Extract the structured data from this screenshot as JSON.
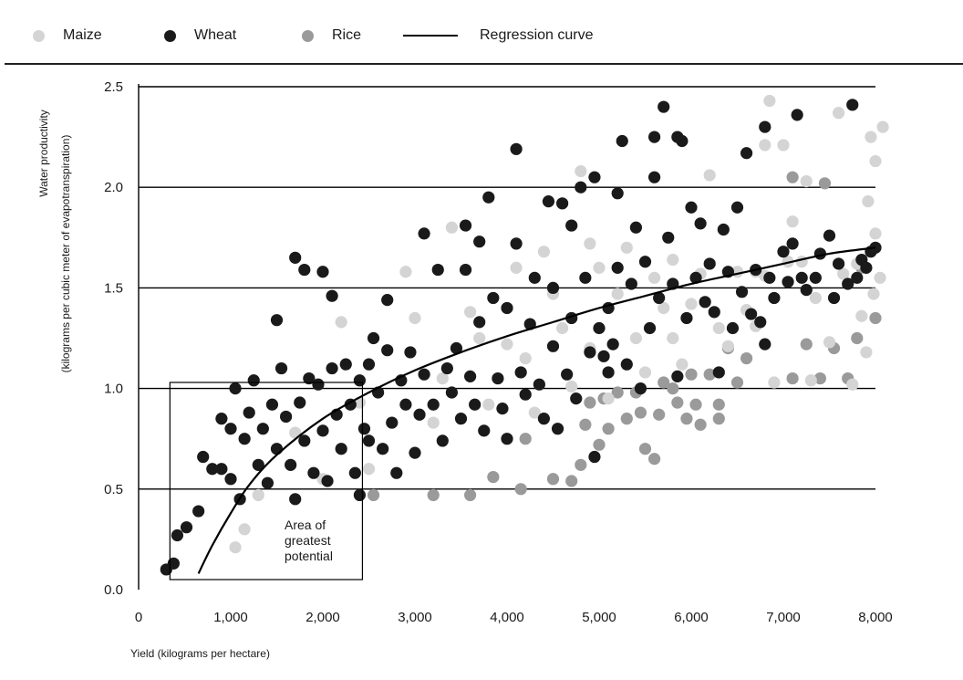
{
  "legend": {
    "maize_label": "Maize",
    "wheat_label": "Wheat",
    "rice_label": "Rice",
    "curve_label": "Regression curve"
  },
  "colors": {
    "maize": "#d4d4d4",
    "wheat": "#1a1a1a",
    "rice": "#9a9a9a",
    "curve": "#000000",
    "grid": "#000000"
  },
  "chart_data": {
    "type": "scatter",
    "title": "",
    "xlabel": "Yield (kilograms per hectare)",
    "ylabel_line1": "Water productivity",
    "ylabel_line2": "(kilograms per cubic meter of evapotranspiration)",
    "xlim": [
      0,
      8000
    ],
    "ylim": [
      0,
      2.5
    ],
    "x_ticks": [
      "0",
      "1,000",
      "2,000",
      "3,000",
      "4,000",
      "5,000",
      "6,000",
      "7,000",
      "8,000"
    ],
    "y_ticks": [
      "0.0",
      "0.5",
      "1.0",
      "1.5",
      "2.0",
      "2.5"
    ],
    "grid": "horizontal",
    "legend_position": "top",
    "annotation": {
      "lines": [
        "Area of",
        "greatest",
        "potential"
      ],
      "box_x": [
        340,
        2430
      ],
      "box_y": [
        0.05,
        1.03
      ]
    },
    "regression_curve": {
      "name": "Regression curve",
      "points": [
        [
          650,
          0.08
        ],
        [
          800,
          0.22
        ],
        [
          1000,
          0.38
        ],
        [
          1200,
          0.52
        ],
        [
          1500,
          0.67
        ],
        [
          2000,
          0.85
        ],
        [
          2500,
          0.98
        ],
        [
          3000,
          1.09
        ],
        [
          3500,
          1.18
        ],
        [
          4000,
          1.26
        ],
        [
          4500,
          1.33
        ],
        [
          5000,
          1.4
        ],
        [
          5500,
          1.46
        ],
        [
          6000,
          1.52
        ],
        [
          6500,
          1.57
        ],
        [
          7000,
          1.62
        ],
        [
          7500,
          1.67
        ],
        [
          8000,
          1.7
        ]
      ]
    },
    "series": [
      {
        "name": "Maize",
        "points": [
          [
            1050,
            0.21
          ],
          [
            1150,
            0.3
          ],
          [
            1300,
            0.47
          ],
          [
            1700,
            0.78
          ],
          [
            2000,
            0.55
          ],
          [
            2200,
            1.33
          ],
          [
            2400,
            0.93
          ],
          [
            2500,
            0.6
          ],
          [
            2900,
            1.58
          ],
          [
            3000,
            1.35
          ],
          [
            3200,
            0.83
          ],
          [
            3300,
            1.05
          ],
          [
            3400,
            1.8
          ],
          [
            3600,
            1.38
          ],
          [
            3700,
            1.25
          ],
          [
            3800,
            0.92
          ],
          [
            4000,
            1.22
          ],
          [
            4100,
            1.6
          ],
          [
            4200,
            1.15
          ],
          [
            4300,
            0.88
          ],
          [
            4400,
            1.68
          ],
          [
            4500,
            1.47
          ],
          [
            4600,
            1.3
          ],
          [
            4700,
            1.01
          ],
          [
            4800,
            2.08
          ],
          [
            4900,
            1.2
          ],
          [
            4900,
            1.72
          ],
          [
            5000,
            1.6
          ],
          [
            5100,
            0.95
          ],
          [
            5200,
            1.47
          ],
          [
            5300,
            1.7
          ],
          [
            5400,
            1.25
          ],
          [
            5500,
            1.08
          ],
          [
            5600,
            1.55
          ],
          [
            5700,
            1.4
          ],
          [
            5800,
            1.25
          ],
          [
            5800,
            1.64
          ],
          [
            5900,
            1.12
          ],
          [
            6000,
            1.42
          ],
          [
            6100,
            1.57
          ],
          [
            6200,
            2.06
          ],
          [
            6300,
            1.3
          ],
          [
            6400,
            1.21
          ],
          [
            6500,
            1.58
          ],
          [
            6600,
            1.39
          ],
          [
            6700,
            1.58
          ],
          [
            6700,
            1.31
          ],
          [
            6800,
            2.21
          ],
          [
            6800,
            1.56
          ],
          [
            6850,
            2.43
          ],
          [
            6900,
            1.03
          ],
          [
            7000,
            2.21
          ],
          [
            7050,
            1.63
          ],
          [
            7100,
            1.83
          ],
          [
            7200,
            1.63
          ],
          [
            7250,
            2.03
          ],
          [
            7300,
            1.04
          ],
          [
            7350,
            1.45
          ],
          [
            7500,
            1.23
          ],
          [
            7600,
            2.37
          ],
          [
            7650,
            1.57
          ],
          [
            7750,
            1.02
          ],
          [
            7800,
            1.62
          ],
          [
            7850,
            1.36
          ],
          [
            7900,
            1.18
          ],
          [
            7920,
            1.93
          ],
          [
            7950,
            2.25
          ],
          [
            8000,
            2.13
          ],
          [
            8000,
            1.77
          ],
          [
            8050,
            1.55
          ],
          [
            8080,
            2.3
          ],
          [
            7980,
            1.47
          ]
        ]
      },
      {
        "name": "Wheat",
        "points": [
          [
            300,
            0.1
          ],
          [
            380,
            0.13
          ],
          [
            420,
            0.27
          ],
          [
            520,
            0.31
          ],
          [
            650,
            0.39
          ],
          [
            700,
            0.66
          ],
          [
            800,
            0.6
          ],
          [
            900,
            0.85
          ],
          [
            900,
            0.6
          ],
          [
            1000,
            0.55
          ],
          [
            1000,
            0.8
          ],
          [
            1050,
            1.0
          ],
          [
            1100,
            0.45
          ],
          [
            1150,
            0.75
          ],
          [
            1200,
            0.88
          ],
          [
            1250,
            1.04
          ],
          [
            1300,
            0.62
          ],
          [
            1350,
            0.8
          ],
          [
            1400,
            0.53
          ],
          [
            1450,
            0.92
          ],
          [
            1500,
            0.7
          ],
          [
            1550,
            1.1
          ],
          [
            1500,
            1.34
          ],
          [
            1600,
            0.86
          ],
          [
            1650,
            0.62
          ],
          [
            1700,
            0.45
          ],
          [
            1700,
            1.65
          ],
          [
            1750,
            0.93
          ],
          [
            1800,
            0.74
          ],
          [
            1800,
            1.59
          ],
          [
            1850,
            1.05
          ],
          [
            1900,
            0.58
          ],
          [
            1950,
            1.02
          ],
          [
            2000,
            1.58
          ],
          [
            2000,
            0.79
          ],
          [
            2050,
            0.54
          ],
          [
            2100,
            1.1
          ],
          [
            2150,
            0.87
          ],
          [
            2100,
            1.46
          ],
          [
            2200,
            0.7
          ],
          [
            2250,
            1.12
          ],
          [
            2300,
            0.92
          ],
          [
            2350,
            0.58
          ],
          [
            2400,
            1.04
          ],
          [
            2400,
            0.47
          ],
          [
            2450,
            0.8
          ],
          [
            2500,
            0.74
          ],
          [
            2500,
            1.12
          ],
          [
            2550,
            1.25
          ],
          [
            2600,
            0.98
          ],
          [
            2650,
            0.7
          ],
          [
            2700,
            1.19
          ],
          [
            2750,
            0.83
          ],
          [
            2700,
            1.44
          ],
          [
            2800,
            0.58
          ],
          [
            2850,
            1.04
          ],
          [
            2900,
            0.92
          ],
          [
            2950,
            1.18
          ],
          [
            3000,
            0.68
          ],
          [
            3050,
            0.87
          ],
          [
            3100,
            1.77
          ],
          [
            3100,
            1.07
          ],
          [
            3200,
            0.92
          ],
          [
            3250,
            1.59
          ],
          [
            3300,
            0.74
          ],
          [
            3350,
            1.1
          ],
          [
            3400,
            0.98
          ],
          [
            3450,
            1.2
          ],
          [
            3500,
            0.85
          ],
          [
            3550,
            1.81
          ],
          [
            3550,
            1.59
          ],
          [
            3600,
            1.06
          ],
          [
            3650,
            0.92
          ],
          [
            3700,
            1.73
          ],
          [
            3700,
            1.33
          ],
          [
            3750,
            0.79
          ],
          [
            3800,
            1.95
          ],
          [
            3850,
            1.45
          ],
          [
            3900,
            1.05
          ],
          [
            3950,
            0.9
          ],
          [
            4000,
            1.4
          ],
          [
            4000,
            0.75
          ],
          [
            4100,
            1.72
          ],
          [
            4100,
            2.19
          ],
          [
            4150,
            1.08
          ],
          [
            4200,
            0.97
          ],
          [
            4250,
            1.32
          ],
          [
            4300,
            1.55
          ],
          [
            4350,
            1.02
          ],
          [
            4400,
            0.85
          ],
          [
            4450,
            1.93
          ],
          [
            4500,
            1.21
          ],
          [
            4500,
            1.5
          ],
          [
            4550,
            0.8
          ],
          [
            4600,
            1.92
          ],
          [
            4650,
            1.07
          ],
          [
            4700,
            1.35
          ],
          [
            4700,
            1.81
          ],
          [
            4750,
            0.95
          ],
          [
            4800,
            2.0
          ],
          [
            4850,
            1.55
          ],
          [
            4900,
            1.18
          ],
          [
            4950,
            2.05
          ],
          [
            4950,
            0.66
          ],
          [
            5000,
            1.3
          ],
          [
            5050,
            1.16
          ],
          [
            5100,
            1.4
          ],
          [
            5100,
            1.08
          ],
          [
            5150,
            1.22
          ],
          [
            5200,
            1.97
          ],
          [
            5200,
            1.6
          ],
          [
            5250,
            2.23
          ],
          [
            5300,
            1.12
          ],
          [
            5350,
            1.52
          ],
          [
            5400,
            1.8
          ],
          [
            5450,
            1.0
          ],
          [
            5500,
            1.63
          ],
          [
            5550,
            1.3
          ],
          [
            5600,
            2.25
          ],
          [
            5600,
            2.05
          ],
          [
            5650,
            1.45
          ],
          [
            5700,
            2.4
          ],
          [
            5750,
            1.75
          ],
          [
            5800,
            1.52
          ],
          [
            5850,
            2.25
          ],
          [
            5850,
            1.06
          ],
          [
            5900,
            2.23
          ],
          [
            5950,
            1.35
          ],
          [
            6000,
            1.9
          ],
          [
            6050,
            1.55
          ],
          [
            6100,
            1.82
          ],
          [
            6150,
            1.43
          ],
          [
            6200,
            1.62
          ],
          [
            6250,
            1.38
          ],
          [
            6300,
            1.08
          ],
          [
            6350,
            1.79
          ],
          [
            6400,
            1.58
          ],
          [
            6450,
            1.3
          ],
          [
            6500,
            1.9
          ],
          [
            6550,
            1.48
          ],
          [
            6600,
            2.17
          ],
          [
            6650,
            1.37
          ],
          [
            6700,
            1.59
          ],
          [
            6750,
            1.33
          ],
          [
            6800,
            1.22
          ],
          [
            6800,
            2.3
          ],
          [
            6850,
            1.55
          ],
          [
            6900,
            1.45
          ],
          [
            7000,
            1.68
          ],
          [
            7050,
            1.53
          ],
          [
            7100,
            1.72
          ],
          [
            7150,
            2.36
          ],
          [
            7200,
            1.55
          ],
          [
            7250,
            1.49
          ],
          [
            7350,
            1.55
          ],
          [
            7400,
            1.67
          ],
          [
            7500,
            1.76
          ],
          [
            7550,
            1.45
          ],
          [
            7600,
            1.62
          ],
          [
            7700,
            1.52
          ],
          [
            7750,
            2.41
          ],
          [
            7800,
            1.55
          ],
          [
            7850,
            1.64
          ],
          [
            7900,
            1.6
          ],
          [
            7950,
            1.68
          ],
          [
            8000,
            1.7
          ]
        ]
      },
      {
        "name": "Rice",
        "points": [
          [
            2550,
            0.47
          ],
          [
            3200,
            0.47
          ],
          [
            3600,
            0.47
          ],
          [
            3850,
            0.56
          ],
          [
            4150,
            0.5
          ],
          [
            4200,
            0.75
          ],
          [
            4500,
            0.55
          ],
          [
            4700,
            0.54
          ],
          [
            4800,
            0.62
          ],
          [
            4850,
            0.82
          ],
          [
            4900,
            0.93
          ],
          [
            5000,
            0.72
          ],
          [
            5050,
            0.95
          ],
          [
            5100,
            0.8
          ],
          [
            5200,
            0.98
          ],
          [
            5300,
            0.85
          ],
          [
            5400,
            0.98
          ],
          [
            5450,
            0.88
          ],
          [
            5500,
            0.7
          ],
          [
            5600,
            0.65
          ],
          [
            5650,
            0.87
          ],
          [
            5700,
            1.03
          ],
          [
            5800,
            1.0
          ],
          [
            5850,
            0.93
          ],
          [
            5950,
            0.85
          ],
          [
            6000,
            1.07
          ],
          [
            6050,
            0.92
          ],
          [
            6100,
            0.82
          ],
          [
            6200,
            1.07
          ],
          [
            6300,
            0.85
          ],
          [
            6300,
            0.92
          ],
          [
            6400,
            1.2
          ],
          [
            6500,
            1.03
          ],
          [
            6600,
            1.15
          ],
          [
            7100,
            1.05
          ],
          [
            7250,
            1.22
          ],
          [
            7400,
            1.05
          ],
          [
            7450,
            2.02
          ],
          [
            7550,
            1.2
          ],
          [
            7700,
            1.05
          ],
          [
            7800,
            1.25
          ],
          [
            7850,
            1.6
          ],
          [
            8000,
            1.35
          ],
          [
            7100,
            2.05
          ]
        ]
      }
    ]
  }
}
